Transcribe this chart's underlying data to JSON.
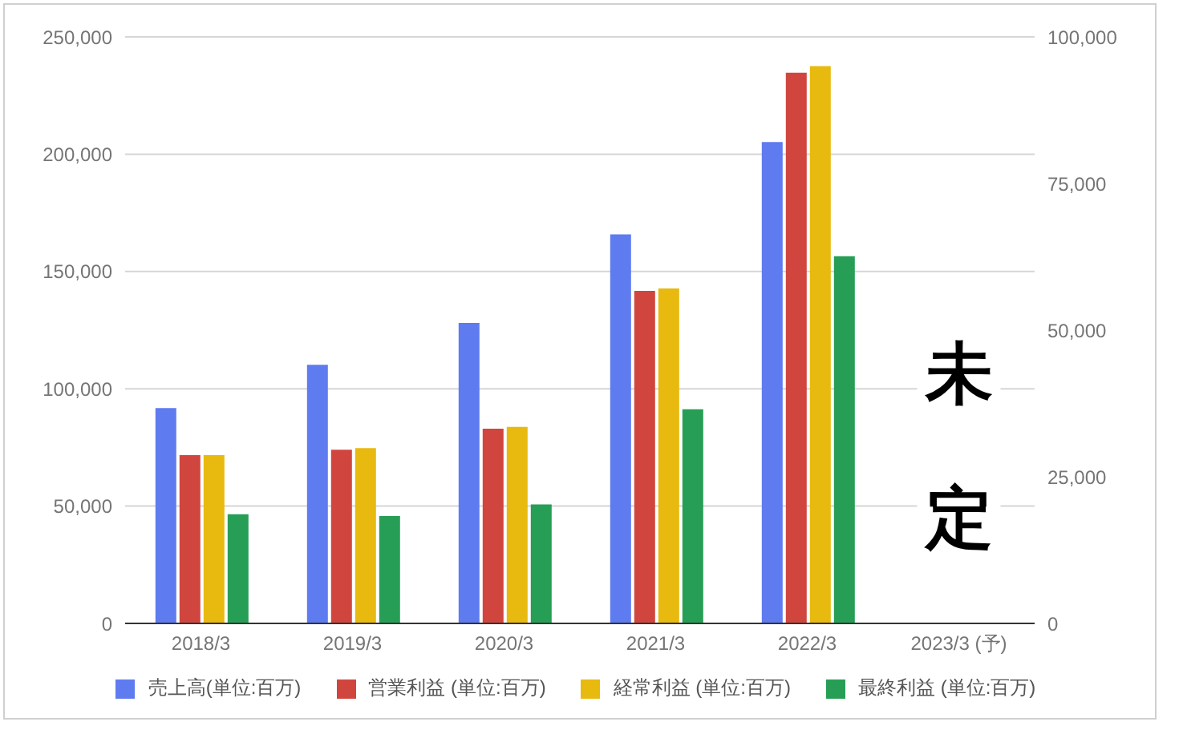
{
  "chart_data": {
    "type": "bar",
    "categories": [
      "2018/3",
      "2019/3",
      "2020/3",
      "2021/3",
      "2022/3",
      "2023/3 (予)"
    ],
    "series": [
      {
        "name": "売上高(単位:百万)",
        "color": "#5f7bf0",
        "values": [
          91800,
          110200,
          128100,
          165800,
          205200,
          0
        ]
      },
      {
        "name": "営業利益 (単位:百万)",
        "color": "#d0463e",
        "axis": "y2",
        "values": [
          28700,
          29600,
          33200,
          56700,
          93900,
          0
        ]
      },
      {
        "name": "経常利益 (単位:百万)",
        "color": "#e8b90f",
        "axis": "y2",
        "values": [
          28700,
          29900,
          33500,
          57100,
          95000,
          0
        ]
      },
      {
        "name": "最終利益 (単位:百万)",
        "color": "#279e55",
        "axis": "y2",
        "values": [
          18600,
          18300,
          20300,
          36500,
          62600,
          0
        ]
      }
    ],
    "ylim": [
      0,
      250000
    ],
    "yticks": [
      {
        "value": 0,
        "label": "0"
      },
      {
        "value": 50000,
        "label": "50,000"
      },
      {
        "value": 100000,
        "label": "100,000"
      },
      {
        "value": 150000,
        "label": "150,000"
      },
      {
        "value": 200000,
        "label": "200,000"
      },
      {
        "value": 250000,
        "label": "250,000"
      }
    ],
    "y2lim": [
      0,
      100000
    ],
    "y2ticks": [
      {
        "value": 0,
        "label": "0"
      },
      {
        "value": 25000,
        "label": "25,000"
      },
      {
        "value": 50000,
        "label": "50,000"
      },
      {
        "value": 75000,
        "label": "75,000"
      },
      {
        "value": 100000,
        "label": "100,000"
      }
    ],
    "annotations": [
      "未定"
    ],
    "grid": "y",
    "legend": "bottom"
  }
}
